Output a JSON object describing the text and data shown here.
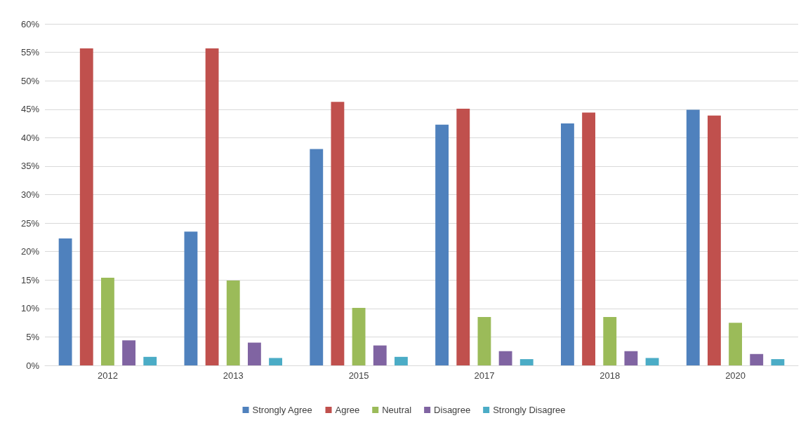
{
  "chart_data": {
    "type": "bar",
    "categories": [
      "2012",
      "2013",
      "2015",
      "2017",
      "2018",
      "2020"
    ],
    "series": [
      {
        "name": "Strongly Agree",
        "color": "#4f81bd",
        "values": [
          22.3,
          23.5,
          38.0,
          42.3,
          42.5,
          44.9
        ]
      },
      {
        "name": "Agree",
        "color": "#c0504d",
        "values": [
          55.7,
          55.7,
          46.3,
          45.1,
          44.4,
          43.9
        ]
      },
      {
        "name": "Neutral",
        "color": "#9bbb59",
        "values": [
          15.4,
          14.9,
          10.1,
          8.5,
          8.5,
          7.5
        ]
      },
      {
        "name": "Disagree",
        "color": "#8064a2",
        "values": [
          4.4,
          4.0,
          3.5,
          2.5,
          2.5,
          2.0
        ]
      },
      {
        "name": "Strongly Disagree",
        "color": "#4bacc6",
        "values": [
          1.5,
          1.3,
          1.5,
          1.1,
          1.3,
          1.1
        ]
      }
    ],
    "ylim": [
      0,
      60
    ],
    "yticks": [
      {
        "value": 0,
        "label": "0%"
      },
      {
        "value": 5,
        "label": "5%"
      },
      {
        "value": 10,
        "label": "10%"
      },
      {
        "value": 15,
        "label": "15%"
      },
      {
        "value": 20,
        "label": "20%"
      },
      {
        "value": 25,
        "label": "25%"
      },
      {
        "value": 30,
        "label": "30%"
      },
      {
        "value": 35,
        "label": "35%"
      },
      {
        "value": 40,
        "label": "40%"
      },
      {
        "value": 45,
        "label": "45%"
      },
      {
        "value": 50,
        "label": "50%"
      },
      {
        "value": 55,
        "label": "55%"
      },
      {
        "value": 60,
        "label": "60%"
      }
    ],
    "grid": "y",
    "legend": "bottom"
  }
}
